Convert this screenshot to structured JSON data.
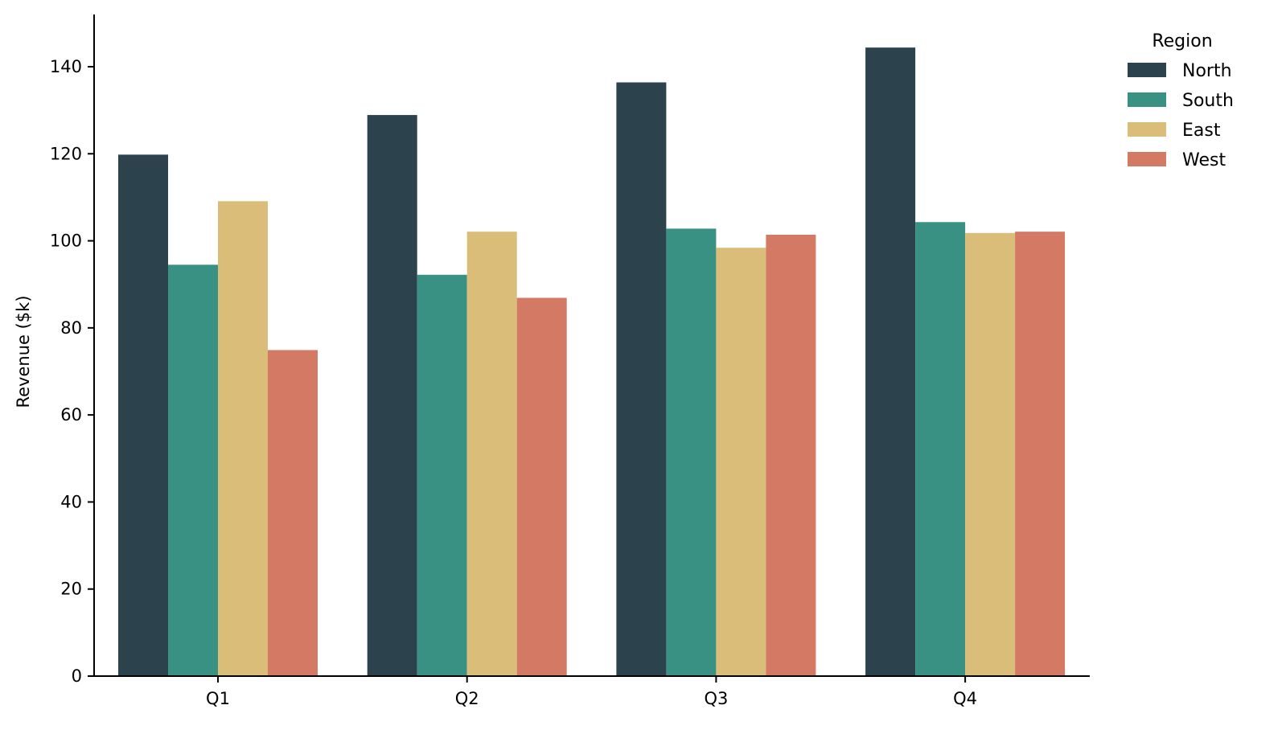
{
  "chart_data": {
    "type": "bar",
    "title": "",
    "xlabel": "",
    "ylabel": "Revenue ($k)",
    "ylim": [
      0,
      152
    ],
    "yticks": [
      0,
      20,
      40,
      60,
      80,
      100,
      120,
      140
    ],
    "categories": [
      "Q1",
      "Q2",
      "Q3",
      "Q4"
    ],
    "legend": {
      "title": "Region",
      "position": "outside-top-right"
    },
    "grid": false,
    "series": [
      {
        "name": "North",
        "color": "#2c434d",
        "values": [
          119.8,
          128.9,
          136.4,
          144.4
        ]
      },
      {
        "name": "South",
        "color": "#399184",
        "values": [
          94.5,
          92.2,
          102.8,
          104.3
        ]
      },
      {
        "name": "East",
        "color": "#dabd79",
        "values": [
          109.1,
          102.1,
          98.4,
          101.8
        ]
      },
      {
        "name": "West",
        "color": "#d47964",
        "values": [
          74.9,
          86.9,
          101.4,
          102.1
        ]
      }
    ]
  }
}
